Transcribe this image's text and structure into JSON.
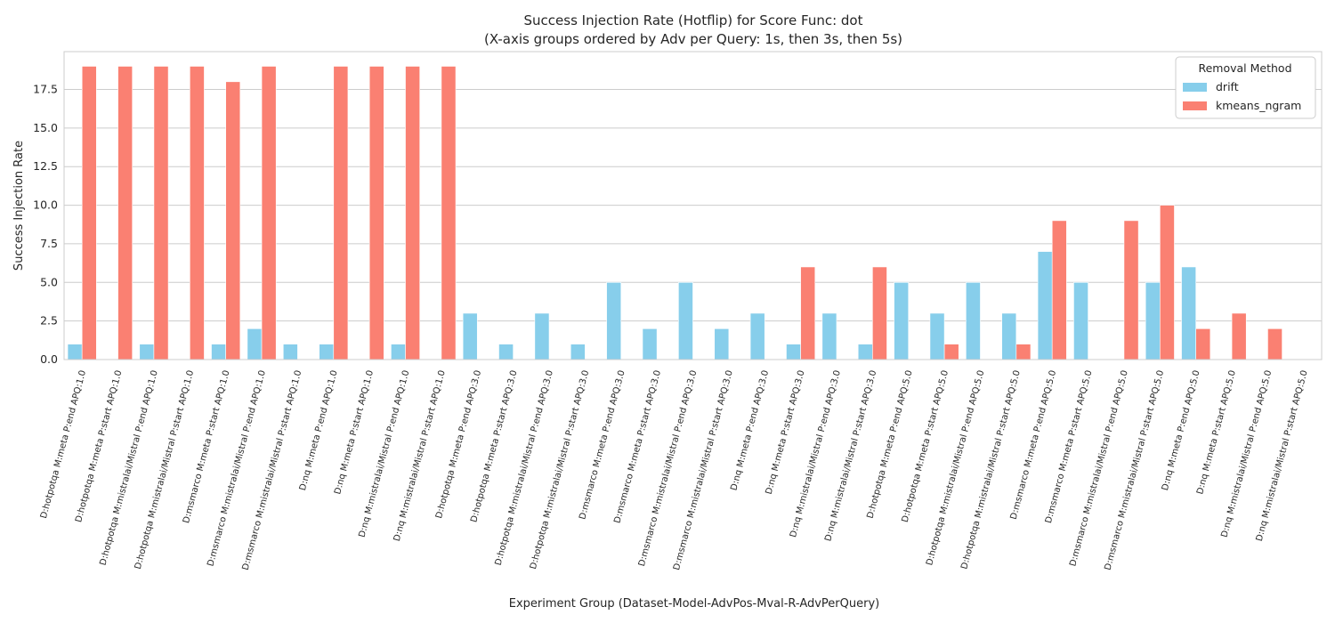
{
  "chart_data": {
    "type": "bar",
    "title": "Success Injection Rate (Hotflip) for Score Func: dot",
    "subtitle": "(X-axis groups ordered by Adv per Query: 1s, then 3s, then 5s)",
    "xlabel": "Experiment Group (Dataset-Model-AdvPos-Mval-R-AdvPerQuery)",
    "ylabel": "Success Injection Rate",
    "ylim": [
      0,
      19.95
    ],
    "yticks": [
      "0.0",
      "2.5",
      "5.0",
      "7.5",
      "10.0",
      "12.5",
      "15.0",
      "17.5"
    ],
    "ytick_values": [
      0,
      2.5,
      5,
      7.5,
      10,
      12.5,
      15,
      17.5
    ],
    "grid": true,
    "legend": {
      "title": "Removal Method",
      "placement": "top-right"
    },
    "categories": [
      "D:hotpotqa M:meta P:end APQ:1.0",
      "D:hotpotqa M:meta P:start APQ:1.0",
      "D:hotpotqa M:mistralai/Mistral P:end APQ:1.0",
      "D:hotpotqa M:mistralai/Mistral P:start APQ:1.0",
      "D:msmarco M:meta P:start APQ:1.0",
      "D:msmarco M:mistralai/Mistral P:end APQ:1.0",
      "D:msmarco M:mistralai/Mistral P:start APQ:1.0",
      "D:nq M:meta P:end APQ:1.0",
      "D:nq M:meta P:start APQ:1.0",
      "D:nq M:mistralai/Mistral P:end APQ:1.0",
      "D:nq M:mistralai/Mistral P:start APQ:1.0",
      "D:hotpotqa M:meta P:end APQ:3.0",
      "D:hotpotqa M:meta P:start APQ:3.0",
      "D:hotpotqa M:mistralai/Mistral P:end APQ:3.0",
      "D:hotpotqa M:mistralai/Mistral P:start APQ:3.0",
      "D:msmarco M:meta P:end APQ:3.0",
      "D:msmarco M:meta P:start APQ:3.0",
      "D:msmarco M:mistralai/Mistral P:end APQ:3.0",
      "D:msmarco M:mistralai/Mistral P:start APQ:3.0",
      "D:nq M:meta P:end APQ:3.0",
      "D:nq M:meta P:start APQ:3.0",
      "D:nq M:mistralai/Mistral P:end APQ:3.0",
      "D:nq M:mistralai/Mistral P:start APQ:3.0",
      "D:hotpotqa M:meta P:end APQ:5.0",
      "D:hotpotqa M:meta P:start APQ:5.0",
      "D:hotpotqa M:mistralai/Mistral P:end APQ:5.0",
      "D:hotpotqa M:mistralai/Mistral P:start APQ:5.0",
      "D:msmarco M:meta P:end APQ:5.0",
      "D:msmarco M:meta P:start APQ:5.0",
      "D:msmarco M:mistralai/Mistral P:end APQ:5.0",
      "D:msmarco M:mistralai/Mistral P:start APQ:5.0",
      "D:nq M:meta P:end APQ:5.0",
      "D:nq M:meta P:start APQ:5.0",
      "D:nq M:mistralai/Mistral P:end APQ:5.0",
      "D:nq M:mistralai/Mistral P:start APQ:5.0"
    ],
    "series": [
      {
        "name": "drift",
        "color": "#87ceeb",
        "values": [
          1,
          0,
          1,
          0,
          1,
          2,
          1,
          1,
          0,
          1,
          0,
          3,
          1,
          3,
          1,
          5,
          2,
          5,
          2,
          3,
          1,
          3,
          1,
          5,
          3,
          5,
          3,
          7,
          5,
          0,
          5,
          6,
          0,
          0,
          0
        ]
      },
      {
        "name": "kmeans_ngram",
        "color": "#fa8072",
        "values": [
          19,
          19,
          19,
          19,
          18,
          19,
          0,
          19,
          19,
          19,
          19,
          0,
          0,
          0,
          0,
          0,
          0,
          0,
          0,
          0,
          6,
          0,
          6,
          0,
          1,
          0,
          1,
          9,
          0,
          9,
          10,
          2,
          3,
          2,
          0
        ]
      }
    ]
  }
}
